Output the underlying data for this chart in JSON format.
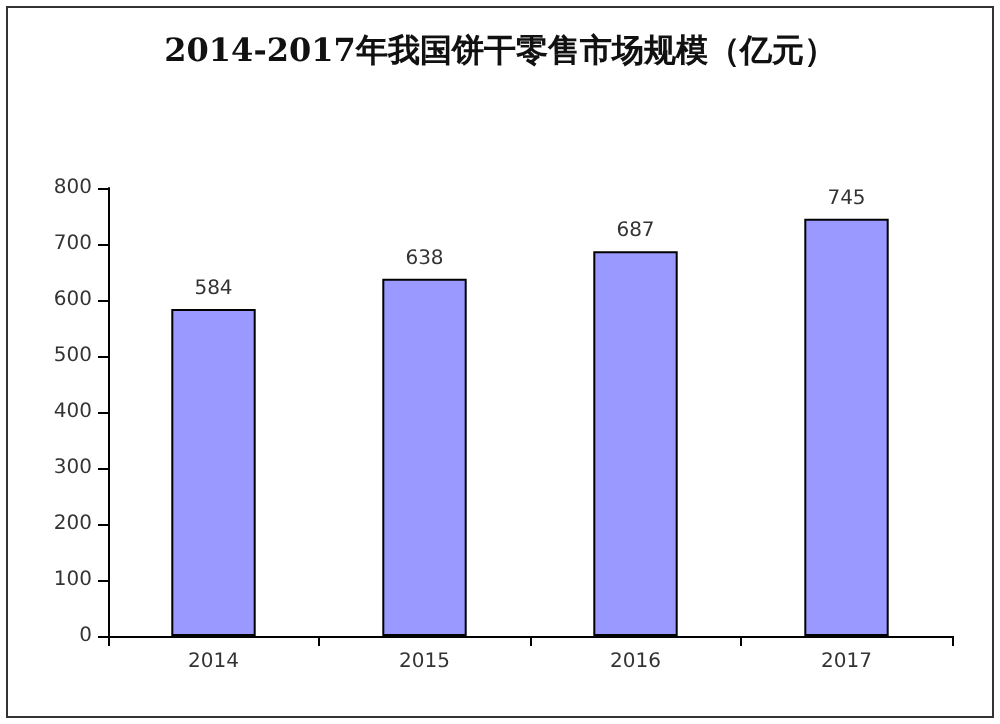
{
  "chart_data": {
    "type": "bar",
    "title": "2014-2017年我国饼干零售市场规模（亿元）",
    "categories": [
      "2014",
      "2015",
      "2016",
      "2017"
    ],
    "values": [
      584,
      638,
      687,
      745
    ],
    "color": "#9999ff",
    "ylim": [
      0,
      800
    ],
    "yticks": [
      0,
      100,
      200,
      300,
      400,
      500,
      600,
      700,
      800
    ],
    "data_labels": true
  }
}
